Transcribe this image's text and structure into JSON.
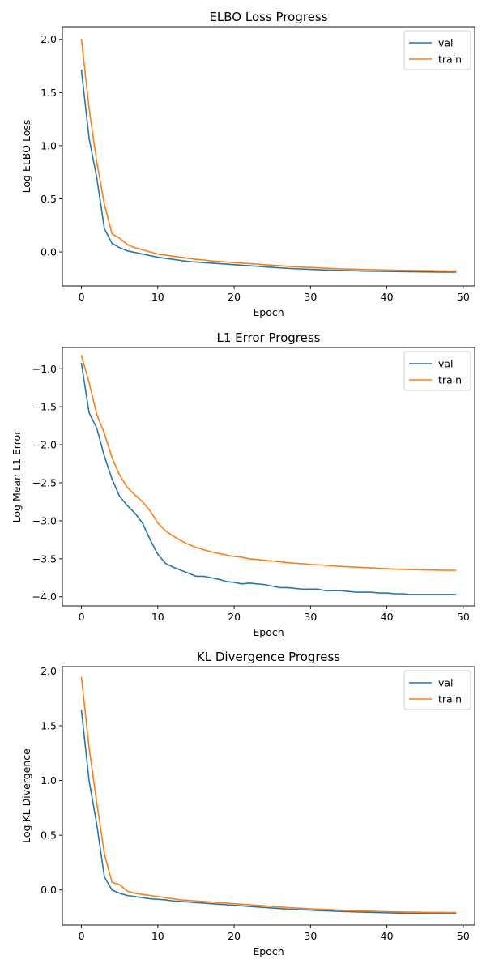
{
  "chart_data": [
    {
      "type": "line",
      "title": "ELBO Loss Progress",
      "xlabel": "Epoch",
      "ylabel": "Log ELBO Loss",
      "xlim": [
        -2.5,
        51.5
      ],
      "ylim": [
        -0.32,
        2.12
      ],
      "xticks": [
        0,
        10,
        20,
        30,
        40,
        50
      ],
      "yticks": [
        0.0,
        0.5,
        1.0,
        1.5,
        2.0
      ],
      "ytick_labels": [
        "0.0",
        "0.5",
        "1.0",
        "1.5",
        "2.0"
      ],
      "grid": false,
      "legend_position": "top-right",
      "x": [
        0,
        1,
        2,
        3,
        4,
        5,
        6,
        7,
        8,
        9,
        10,
        11,
        12,
        13,
        14,
        15,
        16,
        17,
        18,
        19,
        20,
        21,
        22,
        23,
        24,
        25,
        26,
        27,
        28,
        29,
        30,
        31,
        32,
        33,
        34,
        35,
        36,
        37,
        38,
        39,
        40,
        41,
        42,
        43,
        44,
        45,
        46,
        47,
        48,
        49
      ],
      "series": [
        {
          "name": "val",
          "color": "#1f77b4",
          "values": [
            1.71,
            1.07,
            0.7,
            0.22,
            0.08,
            0.04,
            0.01,
            -0.005,
            -0.02,
            -0.035,
            -0.05,
            -0.06,
            -0.07,
            -0.08,
            -0.09,
            -0.095,
            -0.1,
            -0.105,
            -0.11,
            -0.115,
            -0.12,
            -0.125,
            -0.13,
            -0.135,
            -0.14,
            -0.145,
            -0.15,
            -0.155,
            -0.158,
            -0.161,
            -0.164,
            -0.167,
            -0.17,
            -0.172,
            -0.174,
            -0.176,
            -0.178,
            -0.18,
            -0.181,
            -0.182,
            -0.183,
            -0.184,
            -0.185,
            -0.186,
            -0.187,
            -0.188,
            -0.189,
            -0.19,
            -0.19,
            -0.19
          ]
        },
        {
          "name": "train",
          "color": "#ff7f0e",
          "values": [
            2.0,
            1.35,
            0.85,
            0.45,
            0.17,
            0.13,
            0.07,
            0.04,
            0.02,
            0.0,
            -0.02,
            -0.03,
            -0.04,
            -0.05,
            -0.06,
            -0.07,
            -0.075,
            -0.085,
            -0.09,
            -0.095,
            -0.1,
            -0.105,
            -0.11,
            -0.115,
            -0.12,
            -0.125,
            -0.13,
            -0.135,
            -0.14,
            -0.143,
            -0.146,
            -0.15,
            -0.153,
            -0.156,
            -0.159,
            -0.161,
            -0.163,
            -0.165,
            -0.167,
            -0.169,
            -0.17,
            -0.172,
            -0.173,
            -0.174,
            -0.175,
            -0.176,
            -0.177,
            -0.178,
            -0.179,
            -0.18
          ]
        }
      ]
    },
    {
      "type": "line",
      "title": "L1 Error Progress",
      "xlabel": "Epoch",
      "ylabel": "Log Mean L1 Error",
      "xlim": [
        -2.5,
        51.5
      ],
      "ylim": [
        -4.12,
        -0.72
      ],
      "xticks": [
        0,
        10,
        20,
        30,
        40,
        50
      ],
      "yticks": [
        -4.0,
        -3.5,
        -3.0,
        -2.5,
        -2.0,
        -1.5,
        -1.0
      ],
      "ytick_labels": [
        "−4.0",
        "−3.5",
        "−3.0",
        "−2.5",
        "−2.0",
        "−1.5",
        "−1.0"
      ],
      "grid": false,
      "legend_position": "top-right",
      "x": [
        0,
        1,
        2,
        3,
        4,
        5,
        6,
        7,
        8,
        9,
        10,
        11,
        12,
        13,
        14,
        15,
        16,
        17,
        18,
        19,
        20,
        21,
        22,
        23,
        24,
        25,
        26,
        27,
        28,
        29,
        30,
        31,
        32,
        33,
        34,
        35,
        36,
        37,
        38,
        39,
        40,
        41,
        42,
        43,
        44,
        45,
        46,
        47,
        48,
        49
      ],
      "series": [
        {
          "name": "val",
          "color": "#1f77b4",
          "values": [
            -0.93,
            -1.58,
            -1.78,
            -2.15,
            -2.45,
            -2.68,
            -2.8,
            -2.9,
            -3.03,
            -3.25,
            -3.44,
            -3.56,
            -3.61,
            -3.65,
            -3.69,
            -3.73,
            -3.73,
            -3.75,
            -3.77,
            -3.8,
            -3.81,
            -3.83,
            -3.82,
            -3.83,
            -3.84,
            -3.86,
            -3.88,
            -3.88,
            -3.89,
            -3.9,
            -3.9,
            -3.9,
            -3.92,
            -3.92,
            -3.92,
            -3.93,
            -3.94,
            -3.94,
            -3.94,
            -3.95,
            -3.95,
            -3.96,
            -3.96,
            -3.97,
            -3.97,
            -3.97,
            -3.97,
            -3.97,
            -3.97,
            -3.97
          ]
        },
        {
          "name": "train",
          "color": "#ff7f0e",
          "values": [
            -0.83,
            -1.18,
            -1.6,
            -1.85,
            -2.17,
            -2.4,
            -2.56,
            -2.66,
            -2.75,
            -2.87,
            -3.03,
            -3.13,
            -3.2,
            -3.26,
            -3.31,
            -3.35,
            -3.38,
            -3.41,
            -3.43,
            -3.45,
            -3.47,
            -3.48,
            -3.5,
            -3.51,
            -3.52,
            -3.53,
            -3.54,
            -3.55,
            -3.56,
            -3.565,
            -3.575,
            -3.58,
            -3.585,
            -3.595,
            -3.6,
            -3.605,
            -3.61,
            -3.615,
            -3.62,
            -3.625,
            -3.63,
            -3.635,
            -3.638,
            -3.641,
            -3.644,
            -3.646,
            -3.648,
            -3.65,
            -3.651,
            -3.652
          ]
        }
      ]
    },
    {
      "type": "line",
      "title": "KL Divergence Progress",
      "xlabel": "Epoch",
      "ylabel": "Log KL Divergence",
      "xlim": [
        -2.5,
        51.5
      ],
      "ylim": [
        -0.32,
        2.04
      ],
      "xticks": [
        0,
        10,
        20,
        30,
        40,
        50
      ],
      "yticks": [
        0.0,
        0.5,
        1.0,
        1.5,
        2.0
      ],
      "ytick_labels": [
        "0.0",
        "0.5",
        "1.0",
        "1.5",
        "2.0"
      ],
      "grid": false,
      "legend_position": "top-right",
      "x": [
        0,
        1,
        2,
        3,
        4,
        5,
        6,
        7,
        8,
        9,
        10,
        11,
        12,
        13,
        14,
        15,
        16,
        17,
        18,
        19,
        20,
        21,
        22,
        23,
        24,
        25,
        26,
        27,
        28,
        29,
        30,
        31,
        32,
        33,
        34,
        35,
        36,
        37,
        38,
        39,
        40,
        41,
        42,
        43,
        44,
        45,
        46,
        47,
        48,
        49
      ],
      "series": [
        {
          "name": "val",
          "color": "#1f77b4",
          "values": [
            1.64,
            1.0,
            0.6,
            0.12,
            0.0,
            -0.03,
            -0.05,
            -0.06,
            -0.07,
            -0.08,
            -0.085,
            -0.09,
            -0.1,
            -0.105,
            -0.11,
            -0.115,
            -0.12,
            -0.125,
            -0.13,
            -0.135,
            -0.14,
            -0.145,
            -0.15,
            -0.155,
            -0.16,
            -0.165,
            -0.17,
            -0.175,
            -0.178,
            -0.181,
            -0.184,
            -0.187,
            -0.19,
            -0.193,
            -0.196,
            -0.198,
            -0.2,
            -0.202,
            -0.204,
            -0.206,
            -0.208,
            -0.21,
            -0.211,
            -0.212,
            -0.213,
            -0.214,
            -0.215,
            -0.215,
            -0.215,
            -0.215
          ]
        },
        {
          "name": "train",
          "color": "#ff7f0e",
          "values": [
            1.94,
            1.3,
            0.8,
            0.33,
            0.07,
            0.05,
            -0.01,
            -0.03,
            -0.04,
            -0.05,
            -0.06,
            -0.07,
            -0.08,
            -0.09,
            -0.095,
            -0.1,
            -0.105,
            -0.11,
            -0.115,
            -0.12,
            -0.125,
            -0.13,
            -0.135,
            -0.14,
            -0.145,
            -0.15,
            -0.155,
            -0.16,
            -0.165,
            -0.168,
            -0.172,
            -0.175,
            -0.178,
            -0.181,
            -0.184,
            -0.187,
            -0.19,
            -0.192,
            -0.194,
            -0.196,
            -0.198,
            -0.2,
            -0.201,
            -0.202,
            -0.203,
            -0.204,
            -0.205,
            -0.205,
            -0.206,
            -0.206
          ]
        }
      ]
    }
  ]
}
